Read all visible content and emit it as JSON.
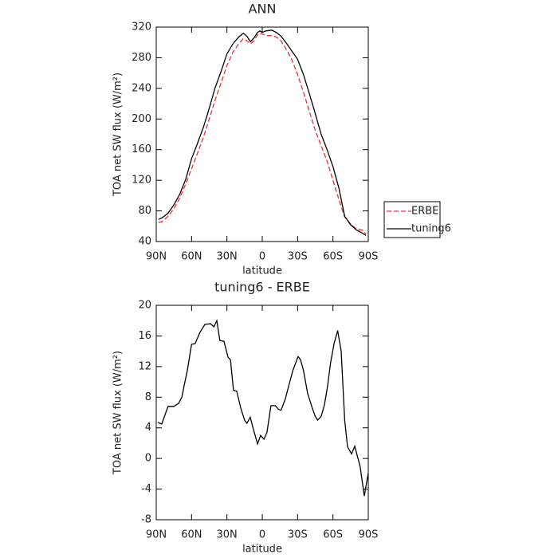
{
  "chart_data": [
    {
      "type": "line",
      "title": "ANN",
      "x_label": "latitude",
      "y_label": "TOA net SW flux (W/m²)",
      "xlim": [
        90,
        -90
      ],
      "xticks": [
        {
          "value": 90,
          "label": "90N"
        },
        {
          "value": 60,
          "label": "60N"
        },
        {
          "value": 30,
          "label": "30N"
        },
        0,
        {
          "value": -30,
          "label": "30S"
        },
        {
          "value": -60,
          "label": "60S"
        },
        {
          "value": -90,
          "label": "90S"
        }
      ],
      "ylim": [
        40,
        320
      ],
      "yticks": [
        40,
        80,
        120,
        160,
        200,
        240,
        280,
        320
      ],
      "legend": "right",
      "x": [
        88,
        85,
        80,
        75,
        70,
        65,
        60,
        55,
        50,
        45,
        40,
        35,
        30,
        25,
        20,
        16,
        13,
        10,
        7,
        4,
        2,
        0,
        -3,
        -8,
        -12,
        -16,
        -20,
        -25,
        -30,
        -35,
        -40,
        -45,
        -50,
        -55,
        -60,
        -65,
        -70,
        -75,
        -80,
        -85,
        -88
      ],
      "series": [
        {
          "name": "ERBE",
          "color": "#e8322a",
          "style": "dashed",
          "values": [
            65,
            66,
            73,
            83,
            97,
            115,
            135,
            155,
            176,
            200,
            225,
            247,
            270,
            287,
            298,
            305,
            302,
            298,
            302,
            310,
            312,
            311,
            309,
            309,
            307,
            302,
            292,
            278,
            258,
            235,
            210,
            185,
            165,
            145,
            120,
            95,
            72,
            63,
            56,
            55,
            50
          ]
        },
        {
          "name": "tuning6",
          "color": "#000000",
          "style": "solid",
          "values": [
            69,
            71,
            77,
            88,
            102,
            121,
            148,
            168,
            189,
            214,
            241,
            262,
            285,
            298,
            307,
            312,
            308,
            301,
            306,
            313,
            315,
            313,
            315,
            316,
            313,
            308,
            300,
            289,
            278,
            258,
            233,
            207,
            180,
            160,
            138,
            110,
            73,
            62,
            55,
            51,
            48
          ]
        }
      ]
    },
    {
      "type": "line",
      "title": "tuning6 - ERBE",
      "x_label": "latitude",
      "y_label": "TOA net SW flux (W/m²)",
      "xlim": [
        90,
        -90
      ],
      "xticks": [
        {
          "value": 90,
          "label": "90N"
        },
        {
          "value": 60,
          "label": "60N"
        },
        {
          "value": 30,
          "label": "30N"
        },
        0,
        {
          "value": -30,
          "label": "30S"
        },
        {
          "value": -60,
          "label": "60S"
        },
        {
          "value": -90,
          "label": "90S"
        }
      ],
      "ylim": [
        -8,
        20
      ],
      "yticks": [
        -8,
        -4,
        0,
        4,
        8,
        12,
        16,
        20
      ],
      "color": "#000000",
      "x": [
        88.6,
        85.3,
        80,
        75,
        71,
        68.3,
        66.3,
        63.6,
        60,
        57,
        52.8,
        48.7,
        44,
        41,
        38.6,
        36,
        32.5,
        29,
        27,
        24.4,
        21.7,
        18.3,
        15,
        13,
        10.2,
        7.5,
        4,
        1.4,
        -1.4,
        -4,
        -7.4,
        -11,
        -14,
        -16,
        -19.6,
        -23,
        -26,
        -30.4,
        -32.5,
        -35,
        -38.5,
        -42.6,
        -45,
        -47,
        -50,
        -52.8,
        -55.5,
        -58,
        -61,
        -64,
        -67,
        -70,
        -72.4,
        -75.8,
        -78.5,
        -83,
        -86.6,
        -90
      ],
      "values": [
        4.7,
        4.5,
        6.8,
        6.8,
        7.2,
        8,
        9.5,
        11.5,
        14.9,
        15.0,
        16.5,
        17.5,
        17.6,
        17.2,
        18.0,
        15.4,
        15.3,
        13.2,
        12.9,
        8.9,
        8.8,
        6.6,
        5.0,
        4.6,
        5.4,
        3.8,
        1.9,
        3.0,
        2.5,
        3.4,
        6.9,
        6.9,
        6.4,
        6.3,
        7.8,
        9.8,
        11.5,
        13.3,
        12.9,
        11.5,
        8.5,
        6.5,
        5.5,
        5.0,
        5.5,
        7.0,
        9.5,
        12.5,
        15.0,
        16.7,
        14.0,
        5.0,
        1.5,
        0.6,
        1.6,
        -1.0,
        -4.9,
        -1.9
      ]
    }
  ]
}
